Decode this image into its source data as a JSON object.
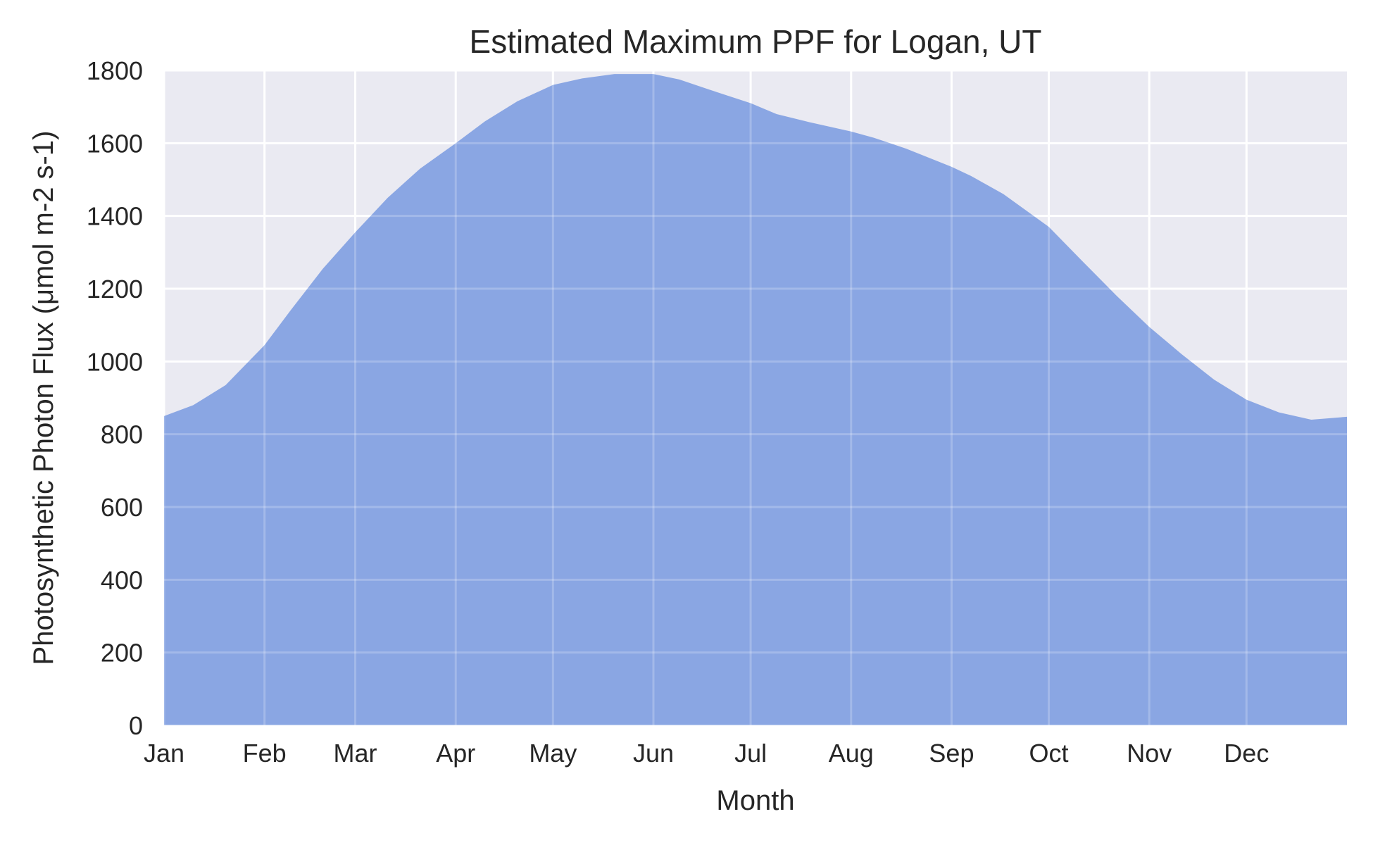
{
  "chart_data": {
    "type": "area",
    "title": "Estimated Maximum PPF for Logan, UT",
    "xlabel": "Month",
    "ylabel": "Photosynthetic Photon Flux (μmol m-2 s-1)",
    "xlim": [
      1,
      366
    ],
    "ylim": [
      0,
      1800
    ],
    "grid": true,
    "colors": {
      "background": "#eaeaf2",
      "grid": "#ffffff",
      "area": "#8aa6e3",
      "text": "#262626"
    },
    "x_ticks": [
      {
        "label": "Jan",
        "x": 1
      },
      {
        "label": "Feb",
        "x": 32
      },
      {
        "label": "Mar",
        "x": 60
      },
      {
        "label": "Apr",
        "x": 91
      },
      {
        "label": "May",
        "x": 121
      },
      {
        "label": "Jun",
        "x": 152
      },
      {
        "label": "Jul",
        "x": 182
      },
      {
        "label": "Aug",
        "x": 213
      },
      {
        "label": "Sep",
        "x": 244
      },
      {
        "label": "Oct",
        "x": 274
      },
      {
        "label": "Nov",
        "x": 305
      },
      {
        "label": "Dec",
        "x": 335
      }
    ],
    "y_ticks": [
      0,
      200,
      400,
      600,
      800,
      1000,
      1200,
      1400,
      1600,
      1800
    ],
    "series": [
      {
        "x": [
          1,
          10,
          20,
          32,
          40,
          50,
          60,
          70,
          80,
          91,
          100,
          110,
          121,
          130,
          140,
          152,
          160,
          170,
          182,
          190,
          200,
          213,
          220,
          230,
          244,
          250,
          260,
          274,
          285,
          295,
          305,
          315,
          325,
          335,
          345,
          355,
          366
        ],
        "values": [
          850,
          880,
          935,
          1045,
          1140,
          1255,
          1355,
          1450,
          1530,
          1600,
          1660,
          1715,
          1760,
          1778,
          1790,
          1790,
          1775,
          1745,
          1710,
          1680,
          1658,
          1632,
          1615,
          1585,
          1535,
          1510,
          1460,
          1370,
          1270,
          1180,
          1095,
          1020,
          950,
          895,
          860,
          840,
          848
        ]
      }
    ]
  }
}
